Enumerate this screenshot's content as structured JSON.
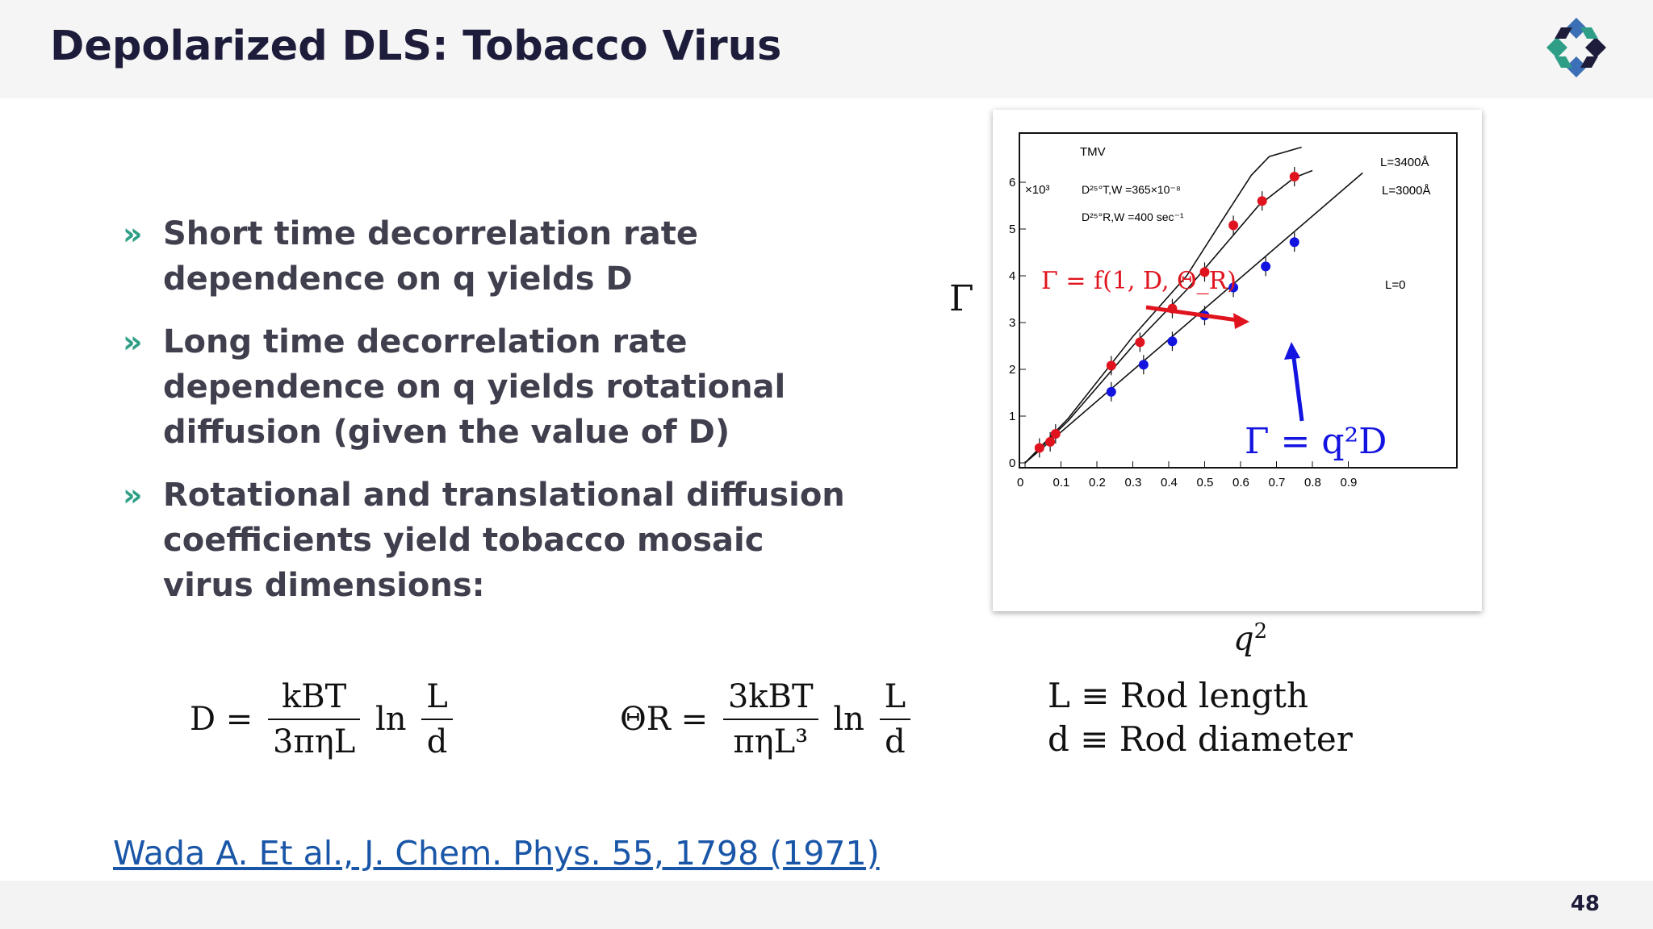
{
  "slide": {
    "title": "Depolarized DLS: Tobacco Virus",
    "page_number": "48",
    "logo_icon": "four-diamond-logo-icon",
    "colors": {
      "teal": "#2e9f86",
      "navy": "#1d1d3b",
      "blue": "#3b6fb6"
    }
  },
  "bullets": [
    {
      "text": "Short time decorrelation rate dependence on q yields D"
    },
    {
      "text": "Long time decorrelation rate dependence on q yields rotational diffusion (given the value of D)"
    },
    {
      "text": "Rotational and translational diffusion coefficients yield tobacco mosaic virus dimensions:"
    }
  ],
  "bullet_marker": "»",
  "figure": {
    "y_label": "Γ",
    "x_label": "q",
    "x_label_sup": "2",
    "inner": {
      "tmv": "TMV",
      "exp": "×10³",
      "dtw": "D²⁵°T,W =365×10⁻⁸",
      "drw": "D²⁵°R,W =400 sec⁻¹",
      "curve_labels": [
        "L=3400Å",
        "L=3000Å",
        "L=0"
      ],
      "y_ticks": [
        "0",
        "1",
        "2",
        "3",
        "4",
        "5",
        "6"
      ],
      "x_ticks": [
        "0",
        "0.1",
        "0.2",
        "0.3",
        "0.4",
        "0.5",
        "0.6",
        "0.7",
        "0.8",
        "0.9"
      ]
    },
    "annotation_red": "Γ = f(1, D, Θ_R)",
    "annotation_blue": "Γ = q²D"
  },
  "chart_data": {
    "type": "scatter",
    "title": "TMV",
    "xlabel": "q²",
    "ylabel": "Γ",
    "xlim": [
      0,
      0.95
    ],
    "ylim": [
      0,
      6.5
    ],
    "series": [
      {
        "name": "",
        "color": "#e0141e",
        "x": [
          0.04,
          0.07,
          0.085,
          0.24,
          0.32,
          0.41,
          0.5,
          0.58,
          0.66,
          0.75
        ],
        "y": [
          0.32,
          0.45,
          0.62,
          2.08,
          2.58,
          3.3,
          4.08,
          5.08,
          5.6,
          6.12
        ]
      },
      {
        "name": "",
        "color": "#1414e0",
        "x": [
          0.24,
          0.33,
          0.41,
          0.5,
          0.58,
          0.67,
          0.75
        ],
        "y": [
          1.52,
          2.1,
          2.6,
          3.15,
          3.75,
          4.2,
          4.72
        ]
      }
    ]
  },
  "equations": {
    "D": {
      "lhs": "D =",
      "num": "kBT",
      "den": "3πηL",
      "ln": "ln",
      "ln_num": "L",
      "ln_den": "d"
    },
    "theta": {
      "lhs": "ΘR =",
      "num": "3kBT",
      "den": "πηL³",
      "ln": "ln",
      "ln_num": "L",
      "ln_den": "d"
    }
  },
  "definitions": [
    "L ≡ Rod length",
    "d ≡ Rod diameter"
  ],
  "citation": "Wada A. Et al., J. Chem. Phys. 55, 1798 (1971)"
}
